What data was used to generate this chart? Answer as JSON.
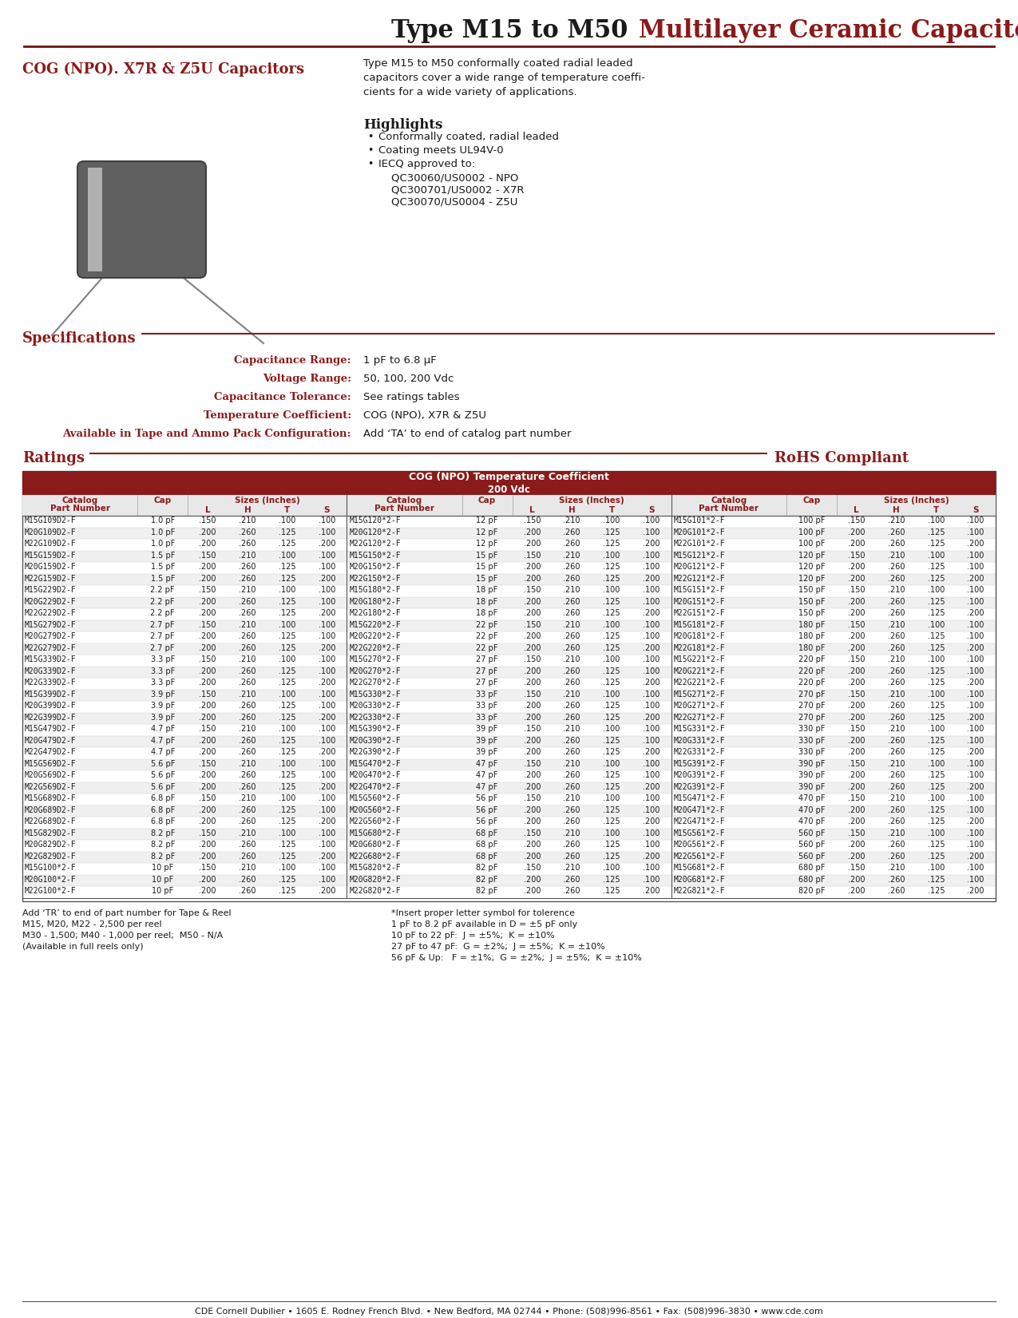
{
  "title_black": "Type M15 to M50",
  "title_red": "  Multilayer Ceramic Capacitors",
  "red_color": "#8B1A1A",
  "cog_title": "COG (NPO). X7R & Z5U Capacitors",
  "desc_text": "Type M15 to M50 conformally coated radial leaded\ncapacitors cover a wide range of temperature coeffi-\ncients for a wide variety of applications.",
  "highlights_title": "Highlights",
  "specs_title": "Specifications",
  "specs": [
    [
      "Capacitance Range:",
      "1 pF to 6.8 μF"
    ],
    [
      "Voltage Range:",
      "50, 100, 200 Vdc"
    ],
    [
      "Capacitance Tolerance:",
      "See ratings tables"
    ],
    [
      "Temperature Coefficient:",
      "COG (NPO), X7R & Z5U"
    ],
    [
      "Available in Tape and Ammo Pack Configuration:",
      "Add ‘TA’ to end of catalog part number"
    ]
  ],
  "ratings_title": "Ratings",
  "rohs_text": "RoHS Compliant",
  "table_title1": "COG (NPO) Temperature Coefficient",
  "table_title2": "200 Vdc",
  "col1_data": [
    [
      "M15G109D2-F",
      "1.0 pF",
      ".150",
      ".210",
      ".100",
      ".100"
    ],
    [
      "M20G109D2-F",
      "1.0 pF",
      ".200",
      ".260",
      ".125",
      ".100"
    ],
    [
      "M22G109D2-F",
      "1.0 pF",
      ".200",
      ".260",
      ".125",
      ".200"
    ],
    [
      "M15G159D2-F",
      "1.5 pF",
      ".150",
      ".210",
      ".100",
      ".100"
    ],
    [
      "M20G159D2-F",
      "1.5 pF",
      ".200",
      ".260",
      ".125",
      ".100"
    ],
    [
      "M22G159D2-F",
      "1.5 pF",
      ".200",
      ".260",
      ".125",
      ".200"
    ],
    [
      "M15G229D2-F",
      "2.2 pF",
      ".150",
      ".210",
      ".100",
      ".100"
    ],
    [
      "M20G229D2-F",
      "2.2 pF",
      ".200",
      ".260",
      ".125",
      ".100"
    ],
    [
      "M22G229D2-F",
      "2.2 pF",
      ".200",
      ".260",
      ".125",
      ".200"
    ],
    [
      "M15G279D2-F",
      "2.7 pF",
      ".150",
      ".210",
      ".100",
      ".100"
    ],
    [
      "M20G279D2-F",
      "2.7 pF",
      ".200",
      ".260",
      ".125",
      ".100"
    ],
    [
      "M22G279D2-F",
      "2.7 pF",
      ".200",
      ".260",
      ".125",
      ".200"
    ],
    [
      "M15G339D2-F",
      "3.3 pF",
      ".150",
      ".210",
      ".100",
      ".100"
    ],
    [
      "M20G339D2-F",
      "3.3 pF",
      ".200",
      ".260",
      ".125",
      ".100"
    ],
    [
      "M22G339D2-F",
      "3.3 pF",
      ".200",
      ".260",
      ".125",
      ".200"
    ],
    [
      "M15G399D2-F",
      "3.9 pF",
      ".150",
      ".210",
      ".100",
      ".100"
    ],
    [
      "M20G399D2-F",
      "3.9 pF",
      ".200",
      ".260",
      ".125",
      ".100"
    ],
    [
      "M22G399D2-F",
      "3.9 pF",
      ".200",
      ".260",
      ".125",
      ".200"
    ],
    [
      "M15G479D2-F",
      "4.7 pF",
      ".150",
      ".210",
      ".100",
      ".100"
    ],
    [
      "M20G479D2-F",
      "4.7 pF",
      ".200",
      ".260",
      ".125",
      ".100"
    ],
    [
      "M22G479D2-F",
      "4.7 pF",
      ".200",
      ".260",
      ".125",
      ".200"
    ],
    [
      "M15G569D2-F",
      "5.6 pF",
      ".150",
      ".210",
      ".100",
      ".100"
    ],
    [
      "M20G569D2-F",
      "5.6 pF",
      ".200",
      ".260",
      ".125",
      ".100"
    ],
    [
      "M22G569D2-F",
      "5.6 pF",
      ".200",
      ".260",
      ".125",
      ".200"
    ],
    [
      "M15G689D2-F",
      "6.8 pF",
      ".150",
      ".210",
      ".100",
      ".100"
    ],
    [
      "M20G689D2-F",
      "6.8 pF",
      ".200",
      ".260",
      ".125",
      ".100"
    ],
    [
      "M22G689D2-F",
      "6.8 pF",
      ".200",
      ".260",
      ".125",
      ".200"
    ],
    [
      "M15G829D2-F",
      "8.2 pF",
      ".150",
      ".210",
      ".100",
      ".100"
    ],
    [
      "M20G829D2-F",
      "8.2 pF",
      ".200",
      ".260",
      ".125",
      ".100"
    ],
    [
      "M22G829D2-F",
      "8.2 pF",
      ".200",
      ".260",
      ".125",
      ".200"
    ],
    [
      "M15G100*2-F",
      "10 pF",
      ".150",
      ".210",
      ".100",
      ".100"
    ],
    [
      "M20G100*2-F",
      "10 pF",
      ".200",
      ".260",
      ".125",
      ".100"
    ],
    [
      "M22G100*2-F",
      "10 pF",
      ".200",
      ".260",
      ".125",
      ".200"
    ]
  ],
  "col2_data": [
    [
      "M15G120*2-F",
      "12 pF",
      ".150",
      ".210",
      ".100",
      ".100"
    ],
    [
      "M20G120*2-F",
      "12 pF",
      ".200",
      ".260",
      ".125",
      ".100"
    ],
    [
      "M22G120*2-F",
      "12 pF",
      ".200",
      ".260",
      ".125",
      ".200"
    ],
    [
      "M15G150*2-F",
      "15 pF",
      ".150",
      ".210",
      ".100",
      ".100"
    ],
    [
      "M20G150*2-F",
      "15 pF",
      ".200",
      ".260",
      ".125",
      ".100"
    ],
    [
      "M22G150*2-F",
      "15 pF",
      ".200",
      ".260",
      ".125",
      ".200"
    ],
    [
      "M15G180*2-F",
      "18 pF",
      ".150",
      ".210",
      ".100",
      ".100"
    ],
    [
      "M20G180*2-F",
      "18 pF",
      ".200",
      ".260",
      ".125",
      ".100"
    ],
    [
      "M22G180*2-F",
      "18 pF",
      ".200",
      ".260",
      ".125",
      ".200"
    ],
    [
      "M15G220*2-F",
      "22 pF",
      ".150",
      ".210",
      ".100",
      ".100"
    ],
    [
      "M20G220*2-F",
      "22 pF",
      ".200",
      ".260",
      ".125",
      ".100"
    ],
    [
      "M22G220*2-F",
      "22 pF",
      ".200",
      ".260",
      ".125",
      ".200"
    ],
    [
      "M15G270*2-F",
      "27 pF",
      ".150",
      ".210",
      ".100",
      ".100"
    ],
    [
      "M20G270*2-F",
      "27 pF",
      ".200",
      ".260",
      ".125",
      ".100"
    ],
    [
      "M22G270*2-F",
      "27 pF",
      ".200",
      ".260",
      ".125",
      ".200"
    ],
    [
      "M15G330*2-F",
      "33 pF",
      ".150",
      ".210",
      ".100",
      ".100"
    ],
    [
      "M20G330*2-F",
      "33 pF",
      ".200",
      ".260",
      ".125",
      ".100"
    ],
    [
      "M22G330*2-F",
      "33 pF",
      ".200",
      ".260",
      ".125",
      ".200"
    ],
    [
      "M15G390*2-F",
      "39 pF",
      ".150",
      ".210",
      ".100",
      ".100"
    ],
    [
      "M20G390*2-F",
      "39 pF",
      ".200",
      ".260",
      ".125",
      ".100"
    ],
    [
      "M22G390*2-F",
      "39 pF",
      ".200",
      ".260",
      ".125",
      ".200"
    ],
    [
      "M15G470*2-F",
      "47 pF",
      ".150",
      ".210",
      ".100",
      ".100"
    ],
    [
      "M20G470*2-F",
      "47 pF",
      ".200",
      ".260",
      ".125",
      ".100"
    ],
    [
      "M22G470*2-F",
      "47 pF",
      ".200",
      ".260",
      ".125",
      ".200"
    ],
    [
      "M15G560*2-F",
      "56 pF",
      ".150",
      ".210",
      ".100",
      ".100"
    ],
    [
      "M20G560*2-F",
      "56 pF",
      ".200",
      ".260",
      ".125",
      ".100"
    ],
    [
      "M22G560*2-F",
      "56 pF",
      ".200",
      ".260",
      ".125",
      ".200"
    ],
    [
      "M15G680*2-F",
      "68 pF",
      ".150",
      ".210",
      ".100",
      ".100"
    ],
    [
      "M20G680*2-F",
      "68 pF",
      ".200",
      ".260",
      ".125",
      ".100"
    ],
    [
      "M22G680*2-F",
      "68 pF",
      ".200",
      ".260",
      ".125",
      ".200"
    ],
    [
      "M15G820*2-F",
      "82 pF",
      ".150",
      ".210",
      ".100",
      ".100"
    ],
    [
      "M20G820*2-F",
      "82 pF",
      ".200",
      ".260",
      ".125",
      ".100"
    ],
    [
      "M22G820*2-F",
      "82 pF",
      ".200",
      ".260",
      ".125",
      ".200"
    ]
  ],
  "col3_data": [
    [
      "M15G101*2-F",
      "100 pF",
      ".150",
      ".210",
      ".100",
      ".100"
    ],
    [
      "M20G101*2-F",
      "100 pF",
      ".200",
      ".260",
      ".125",
      ".100"
    ],
    [
      "M22G101*2-F",
      "100 pF",
      ".200",
      ".260",
      ".125",
      ".200"
    ],
    [
      "M15G121*2-F",
      "120 pF",
      ".150",
      ".210",
      ".100",
      ".100"
    ],
    [
      "M20G121*2-F",
      "120 pF",
      ".200",
      ".260",
      ".125",
      ".100"
    ],
    [
      "M22G121*2-F",
      "120 pF",
      ".200",
      ".260",
      ".125",
      ".200"
    ],
    [
      "M15G151*2-F",
      "150 pF",
      ".150",
      ".210",
      ".100",
      ".100"
    ],
    [
      "M20G151*2-F",
      "150 pF",
      ".200",
      ".260",
      ".125",
      ".100"
    ],
    [
      "M22G151*2-F",
      "150 pF",
      ".200",
      ".260",
      ".125",
      ".200"
    ],
    [
      "M15G181*2-F",
      "180 pF",
      ".150",
      ".210",
      ".100",
      ".100"
    ],
    [
      "M20G181*2-F",
      "180 pF",
      ".200",
      ".260",
      ".125",
      ".100"
    ],
    [
      "M22G181*2-F",
      "180 pF",
      ".200",
      ".260",
      ".125",
      ".200"
    ],
    [
      "M15G221*2-F",
      "220 pF",
      ".150",
      ".210",
      ".100",
      ".100"
    ],
    [
      "M20G221*2-F",
      "220 pF",
      ".200",
      ".260",
      ".125",
      ".100"
    ],
    [
      "M22G221*2-F",
      "220 pF",
      ".200",
      ".260",
      ".125",
      ".200"
    ],
    [
      "M15G271*2-F",
      "270 pF",
      ".150",
      ".210",
      ".100",
      ".100"
    ],
    [
      "M20G271*2-F",
      "270 pF",
      ".200",
      ".260",
      ".125",
      ".100"
    ],
    [
      "M22G271*2-F",
      "270 pF",
      ".200",
      ".260",
      ".125",
      ".200"
    ],
    [
      "M15G331*2-F",
      "330 pF",
      ".150",
      ".210",
      ".100",
      ".100"
    ],
    [
      "M20G331*2-F",
      "330 pF",
      ".200",
      ".260",
      ".125",
      ".100"
    ],
    [
      "M22G331*2-F",
      "330 pF",
      ".200",
      ".260",
      ".125",
      ".200"
    ],
    [
      "M15G391*2-F",
      "390 pF",
      ".150",
      ".210",
      ".100",
      ".100"
    ],
    [
      "M20G391*2-F",
      "390 pF",
      ".200",
      ".260",
      ".125",
      ".100"
    ],
    [
      "M22G391*2-F",
      "390 pF",
      ".200",
      ".260",
      ".125",
      ".200"
    ],
    [
      "M15G471*2-F",
      "470 pF",
      ".150",
      ".210",
      ".100",
      ".100"
    ],
    [
      "M20G471*2-F",
      "470 pF",
      ".200",
      ".260",
      ".125",
      ".100"
    ],
    [
      "M22G471*2-F",
      "470 pF",
      ".200",
      ".260",
      ".125",
      ".200"
    ],
    [
      "M15G561*2-F",
      "560 pF",
      ".150",
      ".210",
      ".100",
      ".100"
    ],
    [
      "M20G561*2-F",
      "560 pF",
      ".200",
      ".260",
      ".125",
      ".100"
    ],
    [
      "M22G561*2-F",
      "560 pF",
      ".200",
      ".260",
      ".125",
      ".200"
    ],
    [
      "M15G681*2-F",
      "680 pF",
      ".150",
      ".210",
      ".100",
      ".100"
    ],
    [
      "M20G681*2-F",
      "680 pF",
      ".200",
      ".260",
      ".125",
      ".100"
    ],
    [
      "M22G821*2-F",
      "820 pF",
      ".200",
      ".260",
      ".125",
      ".200"
    ]
  ],
  "footer_notes_left": "Add ‘TR’ to end of part number for Tape & Reel\nM15, M20, M22 - 2,500 per reel\nM30 - 1,500; M40 - 1,000 per reel;  M50 - N/A\n(Available in full reels only)",
  "footer_notes_right": "*Insert proper letter symbol for tolerence\n1 pF to 8.2 pF available in D = ±5 pF only\n10 pF to 22 pF:  J = ±5%;  K = ±10%\n27 pF to 47 pF:  G = ±2%;  J = ±5%;  K = ±10%\n56 pF & Up:   F = ±1%;  G = ±2%;  J = ±5%;  K = ±10%",
  "footer_company": "CDE Cornell Dubilier • 1605 E. Rodney French Blvd. • New Bedford, MA 02744 • Phone: (508)996-8561 • Fax: (508)996-3830 • www.cde.com"
}
